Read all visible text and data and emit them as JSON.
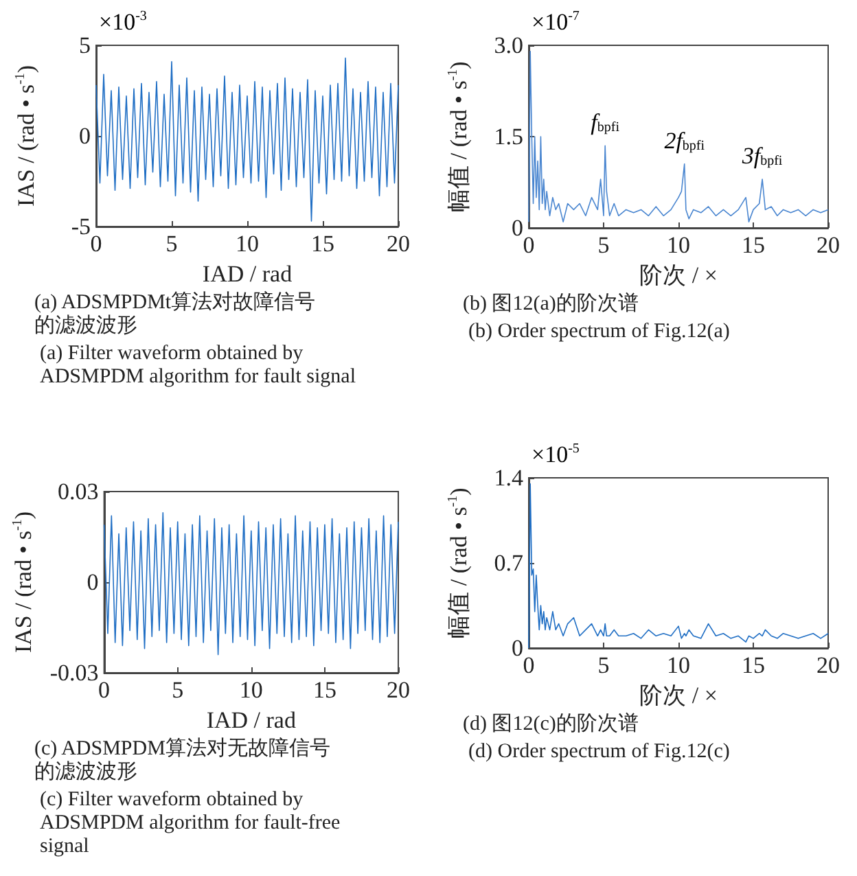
{
  "chart_data": [
    {
      "type": "line",
      "title": "(a) ADSMPDMt算法对故障信号的滤波波形",
      "subtitle": "(a) Filter waveform obtained by ADSMPDM algorithm for fault signal",
      "xlabel": "IAD / rad",
      "ylabel": "IAS / (rad • s$^{-1}$)",
      "annotations": [
        "×10$^{-3}$"
      ],
      "marker": "none",
      "xlim": [
        0,
        20
      ],
      "xticks": [
        0,
        5,
        10,
        15,
        20
      ],
      "ylim": [
        -5,
        5
      ],
      "yticks": [
        -5,
        0,
        5
      ],
      "x": [
        0,
        0.25,
        0.5,
        0.75,
        1,
        1.25,
        1.5,
        1.75,
        2,
        2.25,
        2.5,
        2.75,
        3,
        3.25,
        3.5,
        3.75,
        4,
        4.25,
        4.5,
        4.75,
        5,
        5.25,
        5.5,
        5.75,
        6,
        6.25,
        6.5,
        6.75,
        7,
        7.25,
        7.5,
        7.75,
        8,
        8.25,
        8.5,
        8.75,
        9,
        9.25,
        9.5,
        9.75,
        10,
        10.25,
        10.5,
        10.75,
        11,
        11.25,
        11.5,
        11.75,
        12,
        12.25,
        12.5,
        12.75,
        13,
        13.25,
        13.5,
        13.75,
        14,
        14.25,
        14.5,
        14.75,
        15,
        15.25,
        15.5,
        15.75,
        16,
        16.25,
        16.5,
        16.75,
        17,
        17.25,
        17.5,
        17.75,
        18,
        18.25,
        18.5,
        18.75,
        19,
        19.25,
        19.5,
        19.75,
        20
      ],
      "series": [
        {
          "color": "#1f6ec4",
          "values": [
            2.8,
            -2.6,
            3.4,
            -2.2,
            2.5,
            -3.0,
            2.7,
            -2.4,
            2.2,
            -2.9,
            2.6,
            -2.3,
            2.9,
            -2.7,
            2.4,
            -2.0,
            3.0,
            -2.8,
            2.3,
            -2.5,
            4.1,
            -3.3,
            2.8,
            -2.6,
            3.2,
            -3.1,
            2.5,
            -3.6,
            2.7,
            -2.4,
            2.3,
            -2.8,
            2.6,
            -2.2,
            3.3,
            -2.9,
            2.4,
            -2.7,
            2.8,
            -2.3,
            2.2,
            -2.6,
            3.0,
            -2.5,
            2.7,
            -3.4,
            2.5,
            -2.1,
            2.9,
            -3.0,
            3.2,
            -2.4,
            2.6,
            -2.8,
            2.4,
            -2.3,
            3.1,
            -4.7,
            2.5,
            -2.6,
            2.2,
            -3.2,
            2.8,
            -2.4,
            2.9,
            -2.5,
            4.3,
            -2.2,
            2.6,
            -2.9,
            2.4,
            -2.5,
            3.0,
            -2.3,
            2.7,
            -3.3,
            2.4,
            -2.8,
            2.9,
            -2.6,
            2.8
          ]
        }
      ]
    },
    {
      "type": "line",
      "title": "(b) 图12(a)的阶次谱",
      "subtitle": "(b) Order spectrum of Fig.12(a)",
      "xlabel": "阶次 / ×",
      "ylabel": "幅值 / (rad • s$^{-1}$)",
      "annotations": [
        "×10$^{-7}$",
        {
          "text": "f$_{bpfi}$",
          "x": 5.1,
          "y": 1.35
        },
        {
          "text": "2f$_{bpfi}$",
          "x": 10.4,
          "y": 1.05
        },
        {
          "text": "3f$_{bpfi}$",
          "x": 15.6,
          "y": 0.8
        }
      ],
      "marker": "none",
      "xlim": [
        0,
        20
      ],
      "xticks": [
        0,
        5,
        10,
        15,
        20
      ],
      "ylim": [
        0,
        3
      ],
      "yticks": [
        0,
        1.5,
        {
          "value": 3,
          "label": "3.0"
        }
      ],
      "x": [
        0,
        0.1,
        0.2,
        0.3,
        0.4,
        0.5,
        0.6,
        0.7,
        0.8,
        0.9,
        1.0,
        1.1,
        1.2,
        1.4,
        1.6,
        1.8,
        2.0,
        2.3,
        2.6,
        3.0,
        3.4,
        3.8,
        4.2,
        4.6,
        4.8,
        5.0,
        5.1,
        5.2,
        5.4,
        5.7,
        6.0,
        6.5,
        7.0,
        7.5,
        8.0,
        8.5,
        9.0,
        9.5,
        10.0,
        10.2,
        10.4,
        10.5,
        10.7,
        11.0,
        11.5,
        12.0,
        12.5,
        13.0,
        13.5,
        14.0,
        14.5,
        14.7,
        15.0,
        15.4,
        15.6,
        15.8,
        16.2,
        16.6,
        17.0,
        17.5,
        18.0,
        18.5,
        19.0,
        19.5,
        20.0
      ],
      "series": [
        {
          "color": "#4a86d0",
          "values": [
            0.1,
            2.9,
            1.5,
            0.4,
            1.5,
            0.5,
            1.1,
            0.3,
            1.5,
            0.4,
            0.8,
            0.3,
            0.6,
            0.2,
            0.5,
            0.3,
            0.4,
            0.1,
            0.4,
            0.3,
            0.4,
            0.2,
            0.5,
            0.3,
            0.8,
            0.2,
            1.35,
            0.6,
            0.2,
            0.4,
            0.2,
            0.3,
            0.25,
            0.3,
            0.2,
            0.35,
            0.2,
            0.3,
            0.5,
            0.6,
            1.05,
            0.3,
            0.15,
            0.3,
            0.25,
            0.35,
            0.2,
            0.3,
            0.2,
            0.3,
            0.5,
            0.1,
            0.3,
            0.4,
            0.8,
            0.3,
            0.35,
            0.2,
            0.3,
            0.25,
            0.3,
            0.2,
            0.3,
            0.25,
            0.3
          ]
        }
      ]
    },
    {
      "type": "line",
      "title": "(c) ADSMPDM算法对无故障信号的滤波波形",
      "subtitle": "(c) Filter waveform obtained by ADSMPDM algorithm for fault-free signal",
      "xlabel": "IAD / rad",
      "ylabel": "IAS / (rad • s$^{-1}$)",
      "marker": "none",
      "xlim": [
        0,
        20
      ],
      "xticks": [
        0,
        5,
        10,
        15,
        20
      ],
      "ylim": [
        -0.03,
        0.03
      ],
      "yticks": [
        -0.03,
        0,
        0.03
      ],
      "x": [
        0,
        0.25,
        0.5,
        0.75,
        1,
        1.25,
        1.5,
        1.75,
        2,
        2.25,
        2.5,
        2.75,
        3,
        3.25,
        3.5,
        3.75,
        4,
        4.25,
        4.5,
        4.75,
        5,
        5.25,
        5.5,
        5.75,
        6,
        6.25,
        6.5,
        6.75,
        7,
        7.25,
        7.5,
        7.75,
        8,
        8.25,
        8.5,
        8.75,
        9,
        9.25,
        9.5,
        9.75,
        10,
        10.25,
        10.5,
        10.75,
        11,
        11.25,
        11.5,
        11.75,
        12,
        12.25,
        12.5,
        12.75,
        13,
        13.25,
        13.5,
        13.75,
        14,
        14.25,
        14.5,
        14.75,
        15,
        15.25,
        15.5,
        15.75,
        16,
        16.25,
        16.5,
        16.75,
        17,
        17.25,
        17.5,
        17.75,
        18,
        18.25,
        18.5,
        18.75,
        19,
        19.25,
        19.5,
        19.75,
        20
      ],
      "series": [
        {
          "color": "#1f6ec4",
          "values": [
            0.019,
            -0.017,
            0.022,
            -0.02,
            0.016,
            -0.021,
            0.018,
            -0.016,
            0.02,
            -0.019,
            0.017,
            -0.022,
            0.021,
            -0.018,
            0.019,
            -0.016,
            0.023,
            -0.02,
            0.018,
            -0.017,
            0.02,
            -0.019,
            0.016,
            -0.021,
            0.019,
            -0.018,
            0.022,
            -0.02,
            0.017,
            -0.016,
            0.021,
            -0.024,
            0.018,
            -0.017,
            0.019,
            -0.02,
            0.016,
            -0.018,
            0.022,
            -0.019,
            0.017,
            -0.021,
            0.02,
            -0.016,
            0.018,
            -0.022,
            0.019,
            -0.017,
            0.021,
            -0.018,
            0.016,
            -0.02,
            0.022,
            -0.019,
            0.017,
            -0.018,
            0.02,
            -0.021,
            0.018,
            -0.016,
            0.019,
            -0.017,
            0.021,
            -0.02,
            0.016,
            -0.019,
            0.018,
            -0.022,
            0.02,
            -0.017,
            0.018,
            -0.016,
            0.021,
            -0.019,
            0.017,
            -0.02,
            0.022,
            -0.018,
            0.019,
            -0.017,
            0.02
          ]
        }
      ]
    },
    {
      "type": "line",
      "title": "(d) 图12(c)的阶次谱",
      "subtitle": "(d) Order spectrum of Fig.12(c)",
      "xlabel": "阶次 / ×",
      "ylabel": "幅值 / (rad • s$^{-1}$)",
      "annotations": [
        "×10$^{-5}$"
      ],
      "marker": "none",
      "xlim": [
        0,
        20
      ],
      "xticks": [
        0,
        5,
        10,
        15,
        20
      ],
      "ylim": [
        0,
        1.4
      ],
      "yticks": [
        0,
        0.7,
        1.4
      ],
      "x": [
        0,
        0.1,
        0.2,
        0.3,
        0.4,
        0.5,
        0.6,
        0.7,
        0.8,
        0.9,
        1.0,
        1.1,
        1.2,
        1.4,
        1.6,
        1.8,
        2.0,
        2.3,
        2.6,
        3.0,
        3.4,
        3.8,
        4.2,
        4.6,
        4.8,
        5.0,
        5.1,
        5.2,
        5.4,
        5.7,
        6.0,
        6.5,
        7.0,
        7.5,
        8.0,
        8.5,
        9.0,
        9.5,
        10.0,
        10.2,
        10.4,
        10.5,
        10.7,
        11.0,
        11.5,
        12.0,
        12.5,
        13.0,
        13.5,
        14.0,
        14.5,
        14.7,
        15.0,
        15.4,
        15.6,
        15.8,
        16.2,
        16.6,
        17.0,
        17.5,
        18.0,
        18.5,
        19.0,
        19.5,
        20.0
      ],
      "series": [
        {
          "color": "#1f6ec4",
          "values": [
            0,
            1.35,
            0.6,
            0.65,
            0.3,
            0.6,
            0.35,
            0.15,
            0.35,
            0.2,
            0.3,
            0.15,
            0.25,
            0.15,
            0.3,
            0.15,
            0.2,
            0.1,
            0.2,
            0.25,
            0.1,
            0.15,
            0.2,
            0.1,
            0.15,
            0.1,
            0.2,
            0.1,
            0.1,
            0.15,
            0.1,
            0.1,
            0.12,
            0.08,
            0.15,
            0.1,
            0.12,
            0.1,
            0.18,
            0.08,
            0.12,
            0.1,
            0.15,
            0.1,
            0.08,
            0.2,
            0.1,
            0.12,
            0.08,
            0.1,
            0.05,
            0.1,
            0.08,
            0.12,
            0.1,
            0.15,
            0.1,
            0.08,
            0.12,
            0.1,
            0.08,
            0.1,
            0.12,
            0.08,
            0.12
          ]
        }
      ]
    }
  ]
}
